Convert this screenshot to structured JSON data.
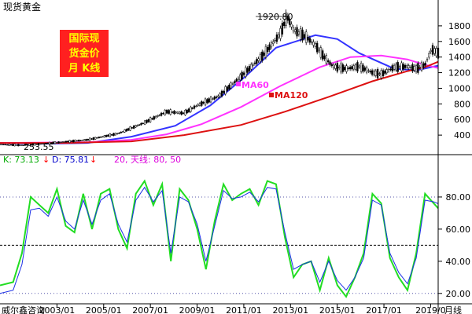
{
  "chart_data": [
    {
      "type": "candlestick",
      "title": "现货黄金",
      "caption_lines": [
        "国际现",
        "货金价",
        "月 K线"
      ],
      "ylim": [
        200,
        1950
      ],
      "y_ticks": [
        400,
        600,
        800,
        1000,
        1200,
        1400,
        1600,
        1800
      ],
      "annotations": {
        "high": "1920.80",
        "low": "253.55"
      },
      "series": [
        {
          "name": "MA60",
          "color": "#3333ff",
          "points": [
            [
              0,
              300
            ],
            [
              0.1,
              290
            ],
            [
              0.2,
              300
            ],
            [
              0.3,
              380
            ],
            [
              0.4,
              520
            ],
            [
              0.48,
              780
            ],
            [
              0.56,
              1150
            ],
            [
              0.63,
              1520
            ],
            [
              0.72,
              1680
            ],
            [
              0.77,
              1630
            ],
            [
              0.82,
              1450
            ],
            [
              0.9,
              1250
            ],
            [
              0.95,
              1230
            ],
            [
              1,
              1290
            ]
          ]
        },
        {
          "name": "MA60",
          "label": "MA60",
          "color": "#ff33ff",
          "points": [
            [
              0,
              300
            ],
            [
              0.2,
              310
            ],
            [
              0.3,
              340
            ],
            [
              0.38,
              410
            ],
            [
              0.46,
              540
            ],
            [
              0.55,
              760
            ],
            [
              0.64,
              1030
            ],
            [
              0.73,
              1270
            ],
            [
              0.8,
              1400
            ],
            [
              0.87,
              1420
            ],
            [
              0.93,
              1370
            ],
            [
              0.97,
              1300
            ],
            [
              1,
              1260
            ]
          ]
        },
        {
          "name": "MA120",
          "label": "MA120",
          "color": "#dd1111",
          "points": [
            [
              0,
              300
            ],
            [
              0.15,
              300
            ],
            [
              0.3,
              320
            ],
            [
              0.42,
              400
            ],
            [
              0.55,
              530
            ],
            [
              0.65,
              700
            ],
            [
              0.75,
              890
            ],
            [
              0.85,
              1090
            ],
            [
              0.93,
              1220
            ],
            [
              0.97,
              1270
            ],
            [
              1,
              1340
            ]
          ]
        }
      ],
      "price_path": [
        [
          0,
          280
        ],
        [
          0.05,
          270
        ],
        [
          0.1,
          290
        ],
        [
          0.2,
          340
        ],
        [
          0.27,
          420
        ],
        [
          0.33,
          560
        ],
        [
          0.38,
          700
        ],
        [
          0.42,
          680
        ],
        [
          0.45,
          780
        ],
        [
          0.5,
          900
        ],
        [
          0.55,
          1150
        ],
        [
          0.6,
          1420
        ],
        [
          0.64,
          1700
        ],
        [
          0.655,
          1920
        ],
        [
          0.67,
          1750
        ],
        [
          0.7,
          1650
        ],
        [
          0.72,
          1550
        ],
        [
          0.74,
          1400
        ],
        [
          0.76,
          1280
        ],
        [
          0.79,
          1250
        ],
        [
          0.82,
          1280
        ],
        [
          0.85,
          1200
        ],
        [
          0.87,
          1180
        ],
        [
          0.9,
          1270
        ],
        [
          0.93,
          1280
        ],
        [
          0.95,
          1250
        ],
        [
          0.97,
          1300
        ],
        [
          0.985,
          1500
        ],
        [
          1,
          1450
        ]
      ]
    },
    {
      "type": "line",
      "title": "KD",
      "ylim": [
        15,
        100
      ],
      "y_ticks": [
        20,
        40,
        60,
        80
      ],
      "legend": {
        "k": "K: 73.13",
        "d": "D: 75.81",
        "params": "20, 天线: 80, 50"
      },
      "reference_lines": [
        80,
        50,
        20
      ],
      "x": [
        "2003/01",
        "2005/01",
        "2007/01",
        "2009/01",
        "2011/01",
        "2013/01",
        "2015/01",
        "2017/01",
        "2019/0"
      ],
      "series": [
        {
          "name": "K",
          "color": "#22dd22",
          "points": [
            [
              0,
              25
            ],
            [
              0.03,
              27
            ],
            [
              0.05,
              45
            ],
            [
              0.07,
              80
            ],
            [
              0.09,
              75
            ],
            [
              0.11,
              70
            ],
            [
              0.13,
              85
            ],
            [
              0.15,
              62
            ],
            [
              0.17,
              58
            ],
            [
              0.19,
              82
            ],
            [
              0.21,
              60
            ],
            [
              0.23,
              82
            ],
            [
              0.25,
              85
            ],
            [
              0.27,
              60
            ],
            [
              0.29,
              48
            ],
            [
              0.31,
              82
            ],
            [
              0.33,
              90
            ],
            [
              0.35,
              75
            ],
            [
              0.37,
              88
            ],
            [
              0.39,
              40
            ],
            [
              0.41,
              85
            ],
            [
              0.43,
              78
            ],
            [
              0.45,
              60
            ],
            [
              0.47,
              35
            ],
            [
              0.49,
              65
            ],
            [
              0.51,
              88
            ],
            [
              0.53,
              78
            ],
            [
              0.55,
              82
            ],
            [
              0.57,
              85
            ],
            [
              0.59,
              75
            ],
            [
              0.61,
              90
            ],
            [
              0.63,
              88
            ],
            [
              0.65,
              55
            ],
            [
              0.67,
              30
            ],
            [
              0.69,
              38
            ],
            [
              0.71,
              40
            ],
            [
              0.73,
              22
            ],
            [
              0.75,
              42
            ],
            [
              0.77,
              25
            ],
            [
              0.79,
              18
            ],
            [
              0.81,
              30
            ],
            [
              0.83,
              45
            ],
            [
              0.85,
              82
            ],
            [
              0.87,
              76
            ],
            [
              0.89,
              42
            ],
            [
              0.91,
              30
            ],
            [
              0.93,
              22
            ],
            [
              0.95,
              45
            ],
            [
              0.97,
              82
            ],
            [
              0.99,
              76
            ],
            [
              1,
              73
            ]
          ]
        },
        {
          "name": "D",
          "color": "#1a2ee6",
          "points": [
            [
              0,
              20
            ],
            [
              0.03,
              22
            ],
            [
              0.05,
              38
            ],
            [
              0.07,
              72
            ],
            [
              0.09,
              73
            ],
            [
              0.11,
              68
            ],
            [
              0.13,
              80
            ],
            [
              0.15,
              65
            ],
            [
              0.17,
              60
            ],
            [
              0.19,
              78
            ],
            [
              0.21,
              63
            ],
            [
              0.23,
              78
            ],
            [
              0.25,
              82
            ],
            [
              0.27,
              63
            ],
            [
              0.29,
              52
            ],
            [
              0.31,
              78
            ],
            [
              0.33,
              86
            ],
            [
              0.35,
              77
            ],
            [
              0.37,
              84
            ],
            [
              0.39,
              45
            ],
            [
              0.41,
              80
            ],
            [
              0.43,
              77
            ],
            [
              0.45,
              63
            ],
            [
              0.47,
              40
            ],
            [
              0.49,
              62
            ],
            [
              0.51,
              84
            ],
            [
              0.53,
              79
            ],
            [
              0.55,
              80
            ],
            [
              0.57,
              83
            ],
            [
              0.59,
              77
            ],
            [
              0.61,
              86
            ],
            [
              0.63,
              85
            ],
            [
              0.65,
              58
            ],
            [
              0.67,
              35
            ],
            [
              0.69,
              38
            ],
            [
              0.71,
              40
            ],
            [
              0.73,
              27
            ],
            [
              0.75,
              40
            ],
            [
              0.77,
              28
            ],
            [
              0.79,
              22
            ],
            [
              0.81,
              30
            ],
            [
              0.83,
              42
            ],
            [
              0.85,
              78
            ],
            [
              0.87,
              75
            ],
            [
              0.89,
              45
            ],
            [
              0.91,
              33
            ],
            [
              0.93,
              26
            ],
            [
              0.95,
              42
            ],
            [
              0.97,
              78
            ],
            [
              0.99,
              77
            ],
            [
              1,
              75.81
            ]
          ]
        }
      ]
    }
  ],
  "footer": {
    "source": "威尔鑫咨询",
    "period": "月线"
  },
  "colors": {
    "tick_text": "#000000",
    "grid": "#333333",
    "border": "#000000"
  }
}
